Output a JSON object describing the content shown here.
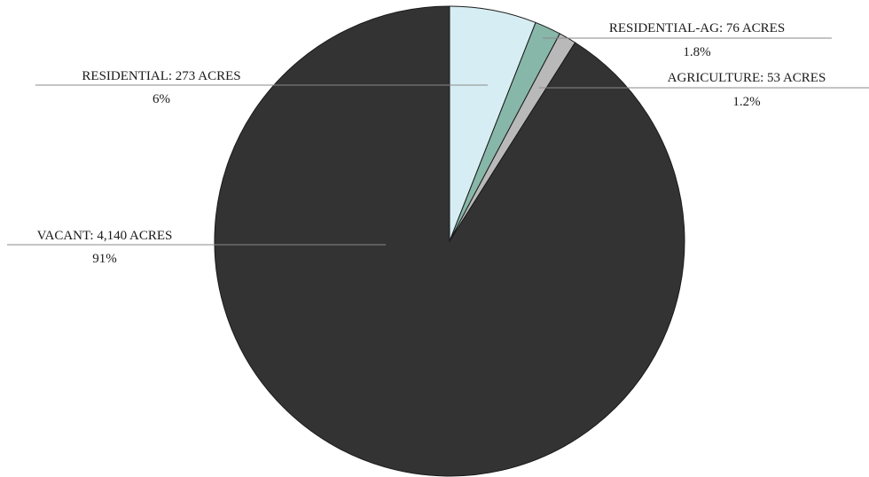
{
  "chart_data": {
    "type": "pie",
    "title": "",
    "start_angle_deg": 0,
    "direction": "clockwise",
    "slices": [
      {
        "name": "RESIDENTIAL",
        "label": "RESIDENTIAL: 273 ACRES",
        "acres": 273,
        "percent_label": "6%",
        "value": 5.97,
        "color": "#d6edf3"
      },
      {
        "name": "RESIDENTIAL-AG",
        "label": "RESIDENTIAL-AG: 76 ACRES",
        "acres": 76,
        "percent_label": "1.8%",
        "value": 1.8,
        "color": "#87b7a8"
      },
      {
        "name": "AGRICULTURE",
        "label": "AGRICULTURE: 53 ACRES",
        "acres": 53,
        "percent_label": "1.2%",
        "value": 1.2,
        "color": "#b9b9b9"
      },
      {
        "name": "VACANT",
        "label": "VACANT: 4,140 ACRES",
        "acres": 4140,
        "percent_label": "91%",
        "value": 91.03,
        "color": "#333333"
      }
    ],
    "slice_outline_color": "#1a1a1a",
    "legend": "none"
  }
}
